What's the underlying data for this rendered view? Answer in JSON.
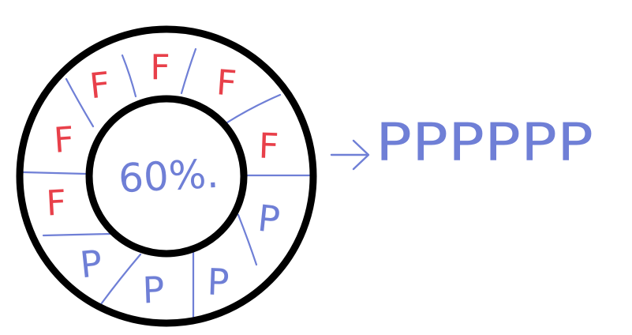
{
  "colors": {
    "ring": "#000000",
    "fail": "#e8404a",
    "pass": "#6f7fd6",
    "background": "#ffffff"
  },
  "diagram": {
    "center_label": "60%.",
    "segments": [
      {
        "letter": "F",
        "status": "fail"
      },
      {
        "letter": "F",
        "status": "fail"
      },
      {
        "letter": "F",
        "status": "fail"
      },
      {
        "letter": "F",
        "status": "fail"
      },
      {
        "letter": "F",
        "status": "fail"
      },
      {
        "letter": "F",
        "status": "fail"
      },
      {
        "letter": "P",
        "status": "pass"
      },
      {
        "letter": "P",
        "status": "pass"
      },
      {
        "letter": "P",
        "status": "pass"
      },
      {
        "letter": "P",
        "status": "pass"
      }
    ],
    "result_label": "PPPPPP"
  }
}
